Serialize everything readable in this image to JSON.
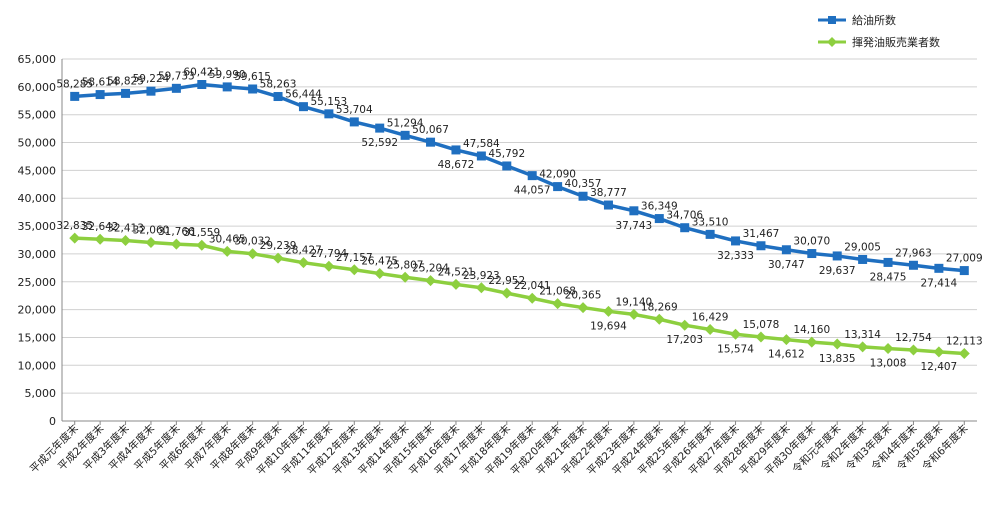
{
  "chart_data": {
    "type": "line",
    "title": "",
    "xlabel": "",
    "ylabel": "",
    "ylim": [
      0,
      65000
    ],
    "yticks": [
      0,
      5000,
      10000,
      15000,
      20000,
      25000,
      30000,
      35000,
      40000,
      45000,
      50000,
      55000,
      60000,
      65000
    ],
    "ytick_labels": [
      "0",
      "5,000",
      "10,000",
      "15,000",
      "20,000",
      "25,000",
      "30,000",
      "35,000",
      "40,000",
      "45,000",
      "50,000",
      "55,000",
      "60,000",
      "65,000"
    ],
    "grid": true,
    "legend_position": "top-right",
    "categories": [
      "平成元年度末",
      "平成2年度末",
      "平成3年度末",
      "平成4年度末",
      "平成5年度末",
      "平成6年度末",
      "平成7年度末",
      "平成8年度末",
      "平成9年度末",
      "平成10年度末",
      "平成11年度末",
      "平成12年度末",
      "平成13年度末",
      "平成14年度末",
      "平成15年度末",
      "平成16年度末",
      "平成17年度末",
      "平成18年度末",
      "平成19年度末",
      "平成20年度末",
      "平成21年度末",
      "平成22年度末",
      "平成23年度末",
      "平成24年度末",
      "平成25年度末",
      "平成26年度末",
      "平成27年度末",
      "平成28年度末",
      "平成29年度末",
      "平成30年度末",
      "令和元年度末",
      "令和2年度末",
      "令和3年度末",
      "令和4年度末",
      "令和5年度末",
      "令和6年度末"
    ],
    "series": [
      {
        "name": "給油所数",
        "color": "#1f6fc0",
        "marker": "square",
        "values": [
          58285,
          58614,
          58825,
          59224,
          59733,
          60421,
          59990,
          59615,
          58263,
          56444,
          55153,
          53704,
          52592,
          51294,
          50067,
          48672,
          47584,
          45792,
          44057,
          42090,
          40357,
          38777,
          37743,
          36349,
          34706,
          33510,
          32333,
          31467,
          30747,
          30070,
          29637,
          29005,
          28475,
          27963,
          27414,
          27009
        ],
        "labels": [
          "58,285",
          "58,614",
          "58,825",
          "59,224",
          "59,733",
          "60,421",
          "59,990",
          "59,615",
          "58,263",
          "56,444",
          "55,153",
          "53,704",
          "52,592",
          "51,294",
          "50,067",
          "48,672",
          "47,584",
          "45,792",
          "44,057",
          "42,090",
          "40,357",
          "38,777",
          "37,743",
          "36,349",
          "34,706",
          "33,510",
          "32,333",
          "31,467",
          "30,747",
          "30,070",
          "29,637",
          "29,005",
          "28,475",
          "27,963",
          "27,414",
          "27,009"
        ]
      },
      {
        "name": "揮発油販売業者数",
        "color": "#8dcf3f",
        "marker": "diamond",
        "values": [
          32835,
          32642,
          32413,
          32060,
          31766,
          31559,
          30465,
          30032,
          29239,
          28427,
          27794,
          27157,
          26475,
          25807,
          25204,
          24521,
          23923,
          22952,
          22041,
          21068,
          20365,
          19694,
          19140,
          18269,
          17203,
          16429,
          15574,
          15078,
          14612,
          14160,
          13835,
          13314,
          13008,
          12754,
          12407,
          12113
        ],
        "labels": [
          "32,835",
          "32,642",
          "32,413",
          "32,060",
          "31,766",
          "31,559",
          "30,465",
          "30,032",
          "29,239",
          "28,427",
          "27,794",
          "27,157",
          "26,475",
          "25,807",
          "25,204",
          "24,521",
          "23,923",
          "22,952",
          "22,041",
          "21,068",
          "20,365",
          "19,694",
          "19,140",
          "18,269",
          "17,203",
          "16,429",
          "15,574",
          "15,078",
          "14,612",
          "14,160",
          "13,835",
          "13,314",
          "13,008",
          "12,754",
          "12,407",
          "12,113"
        ]
      }
    ]
  }
}
